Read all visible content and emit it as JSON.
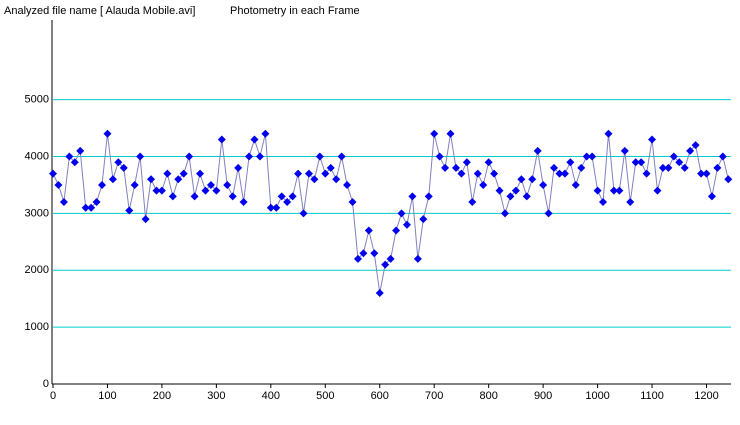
{
  "chart_data": {
    "type": "line",
    "title": "Analyzed file name [ Alauda Mobile.avi]",
    "subtitle": "Photometry in each Frame",
    "x": [
      0,
      10,
      20,
      30,
      40,
      50,
      60,
      70,
      80,
      90,
      100,
      110,
      120,
      130,
      140,
      150,
      160,
      170,
      180,
      190,
      200,
      210,
      220,
      230,
      240,
      250,
      260,
      270,
      280,
      290,
      300,
      310,
      320,
      330,
      340,
      350,
      360,
      370,
      380,
      390,
      400,
      410,
      420,
      430,
      440,
      450,
      460,
      470,
      480,
      490,
      500,
      510,
      520,
      530,
      540,
      550,
      560,
      570,
      580,
      590,
      600,
      610,
      620,
      630,
      640,
      650,
      660,
      670,
      680,
      690,
      700,
      710,
      720,
      730,
      740,
      750,
      760,
      770,
      780,
      790,
      800,
      810,
      820,
      830,
      840,
      850,
      860,
      870,
      880,
      890,
      900,
      910,
      920,
      930,
      940,
      950,
      960,
      970,
      980,
      990,
      1000,
      1010,
      1020,
      1030,
      1040,
      1050,
      1060,
      1070,
      1080,
      1090,
      1100,
      1110,
      1120,
      1130,
      1140,
      1150,
      1160,
      1170,
      1180,
      1190,
      1200,
      1210,
      1220,
      1230,
      1240
    ],
    "series": [
      {
        "color": "#0000ee",
        "line_color": "#8080c0",
        "values": [
          3700,
          3500,
          3200,
          4000,
          3900,
          4100,
          3100,
          3100,
          3200,
          3500,
          4400,
          3600,
          3900,
          3800,
          3050,
          3500,
          4000,
          2900,
          3600,
          3400,
          3400,
          3700,
          3300,
          3600,
          3700,
          4000,
          3300,
          3700,
          3400,
          3500,
          3400,
          4300,
          3500,
          3300,
          3800,
          3200,
          4000,
          4300,
          4000,
          4400,
          3100,
          3100,
          3300,
          3200,
          3300,
          3700,
          3000,
          3700,
          3600,
          4000,
          3700,
          3800,
          3600,
          4000,
          3500,
          3200,
          2200,
          2300,
          2700,
          2300,
          1600,
          2100,
          2200,
          2700,
          3000,
          2800,
          3300,
          2200,
          2900,
          3300,
          4400,
          4000,
          3800,
          4400,
          3800,
          3700,
          3900,
          3200,
          3700,
          3500,
          3900,
          3700,
          3400,
          3000,
          3300,
          3400,
          3600,
          3300,
          3600,
          4100,
          3500,
          3000,
          3800,
          3700,
          3700,
          3900,
          3500,
          3800,
          4000,
          4000,
          3400,
          3200,
          4400,
          3400,
          3400,
          4100,
          3200,
          3900,
          3900,
          3700,
          4300,
          3400,
          3800,
          3800,
          4000,
          3900,
          3800,
          4100,
          4200,
          3700,
          3700,
          3300,
          3800,
          4000,
          3600
        ]
      }
    ],
    "xlim": [
      0,
      1245
    ],
    "xticks": [
      0,
      100,
      200,
      300,
      400,
      500,
      600,
      700,
      800,
      900,
      1000,
      1100,
      1200
    ],
    "ylim": [
      0,
      6400
    ],
    "yticks": [
      0,
      1000,
      2000,
      3000,
      4000,
      5000
    ],
    "grid": true,
    "grid_color": "#00cccc"
  }
}
